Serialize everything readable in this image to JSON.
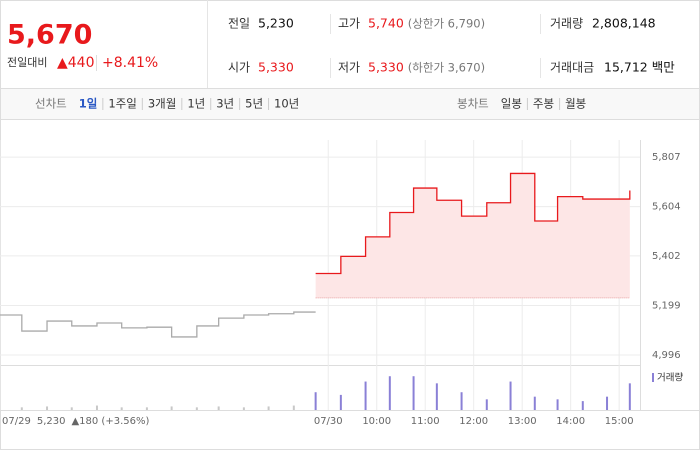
{
  "header": {
    "price": "5,670",
    "change_label": "전일대비",
    "change": "▲440",
    "rate": "+8.41%",
    "stats": [
      {
        "label": "전일",
        "value": "5,230"
      },
      {
        "label": "고가",
        "value": "5,740",
        "note": "(상한가 6,790)"
      },
      {
        "label": "거래량",
        "value": "2,808,148"
      },
      {
        "label": "시가",
        "value": "5,330"
      },
      {
        "label": "저가",
        "value": "5,330",
        "note": "(하한가 3,670)"
      },
      {
        "label": "거래대금",
        "value": "15,712",
        "unit": "백만"
      }
    ]
  },
  "tabs": {
    "line_label": "선차트",
    "line_periods": [
      "1일",
      "1주일",
      "3개월",
      "1년",
      "3년",
      "5년",
      "10년"
    ],
    "candle_label": "봉차트",
    "candle_periods": [
      "일봉",
      "주봉",
      "월봉"
    ]
  },
  "chart_data": {
    "type": "line",
    "xlim": [
      -6.77,
      6.43
    ],
    "ylim": [
      4955,
      5877
    ],
    "yticks": [
      {
        "value": 4996,
        "label": "4,996"
      },
      {
        "value": 5199,
        "label": "5,199"
      },
      {
        "value": 5402,
        "label": "5,402"
      },
      {
        "value": 5604,
        "label": "5,604"
      },
      {
        "value": 5807,
        "label": "5,807"
      }
    ],
    "xticks": [
      {
        "value": -6.77,
        "label": "07/29"
      },
      {
        "value": 0,
        "label": "07/30"
      },
      {
        "value": 1,
        "label": "10:00"
      },
      {
        "value": 2,
        "label": "11:00"
      },
      {
        "value": 3,
        "label": "12:00"
      },
      {
        "value": 4,
        "label": "13:00"
      },
      {
        "value": 5,
        "label": "14:00"
      },
      {
        "value": 6,
        "label": "15:00"
      }
    ],
    "prev_summary": {
      "close": "5,230",
      "change": "▲180 (+3.56%)"
    },
    "baseline": 5230,
    "series": [
      {
        "color": "#aaaaaa",
        "x": [
          -6.77,
          -6.32,
          -6.32,
          -5.8,
          -5.8,
          -5.29,
          -5.29,
          -4.77,
          -4.77,
          -4.26,
          -4.26,
          -3.74,
          -3.74,
          -3.23,
          -3.23,
          -2.71,
          -2.71,
          -2.26,
          -2.26,
          -1.74,
          -1.74,
          -1.23,
          -1.23,
          -0.71,
          -0.71,
          -0.26
        ],
        "values": [
          5160,
          5160,
          5094,
          5094,
          5135,
          5135,
          5115,
          5115,
          5127,
          5127,
          5107,
          5107,
          5110,
          5110,
          5070,
          5070,
          5115,
          5115,
          5147,
          5147,
          5160,
          5160,
          5165,
          5165,
          5172,
          5172
        ]
      },
      {
        "color": "#e8191c",
        "fill": "#fde6e6",
        "x": [
          -0.26,
          0.26,
          0.26,
          0.77,
          0.77,
          1.27,
          1.27,
          1.76,
          1.76,
          2.24,
          2.24,
          2.75,
          2.75,
          3.27,
          3.27,
          3.76,
          3.76,
          4.26,
          4.26,
          4.73,
          4.73,
          5.25,
          5.25,
          6.22,
          6.22
        ],
        "values": [
          5330,
          5330,
          5400,
          5400,
          5480,
          5480,
          5580,
          5580,
          5680,
          5680,
          5630,
          5630,
          5565,
          5565,
          5620,
          5620,
          5740,
          5740,
          5545,
          5545,
          5645,
          5645,
          5635,
          5635,
          5670
        ]
      }
    ],
    "volume_lim": [
      0,
      45
    ],
    "volume": [
      {
        "color": "#c8c8c8",
        "x": [
          -6.32,
          -5.8,
          -5.29,
          -4.77,
          -4.26,
          -3.74,
          -3.23,
          -2.71,
          -2.26,
          -1.74,
          -1.23,
          -0.71
        ],
        "values": [
          3,
          4,
          3,
          5,
          3,
          3,
          4,
          3,
          4,
          3,
          4,
          5
        ]
      },
      {
        "name": "거래량",
        "color": "#8a80d6",
        "x": [
          -0.26,
          0.26,
          0.77,
          1.27,
          1.76,
          2.24,
          2.75,
          3.27,
          3.76,
          4.26,
          4.73,
          5.25,
          5.75,
          6.22
        ],
        "values": [
          20,
          17,
          32,
          38,
          38,
          30,
          20,
          12,
          32,
          15,
          12,
          10,
          15,
          30
        ]
      }
    ]
  }
}
